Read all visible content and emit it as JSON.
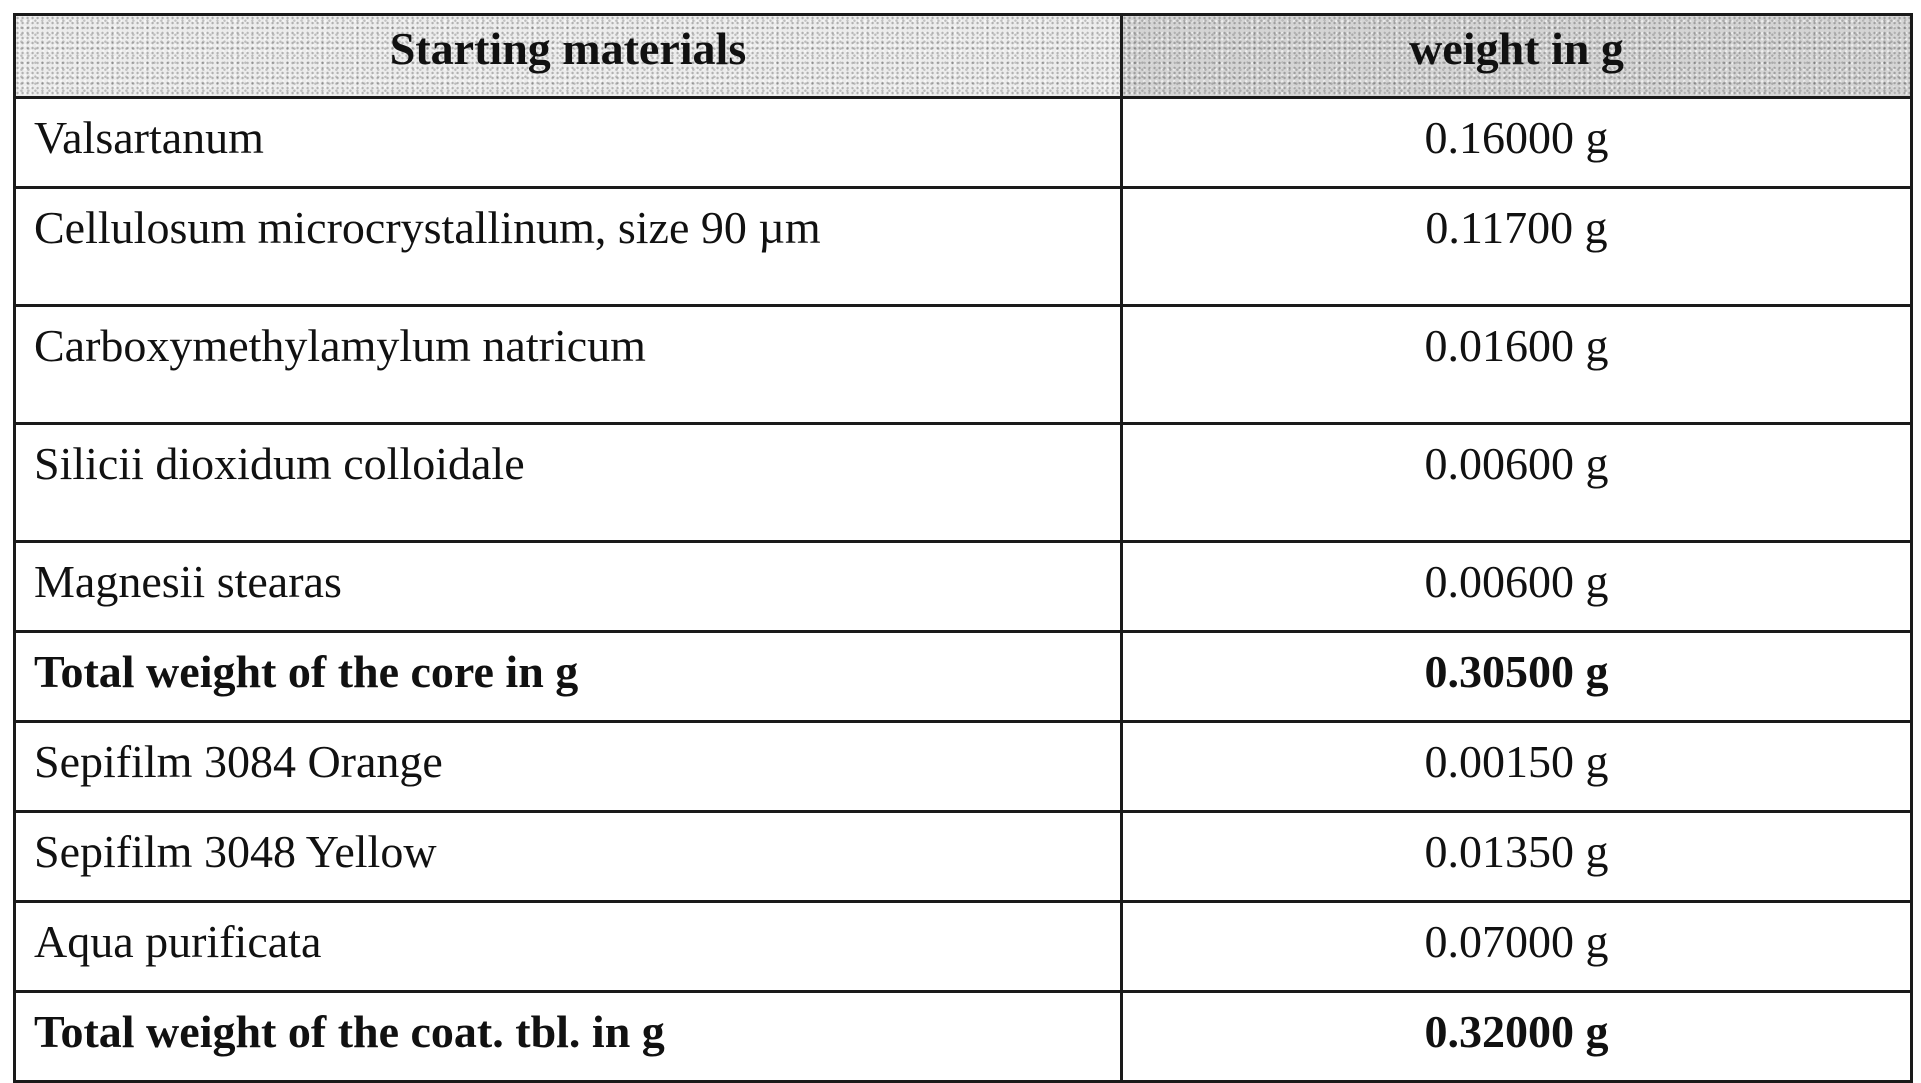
{
  "table": {
    "headers": {
      "material": "Starting materials",
      "weight": "weight in g"
    },
    "rows": [
      {
        "material": "Valsartanum",
        "weight": "0.16000 g",
        "bold": false,
        "tall": false
      },
      {
        "material": "Cellulosum microcrystallinum, size 90 µm",
        "weight": "0.11700 g",
        "bold": false,
        "tall": true
      },
      {
        "material": "Carboxymethylamylum natricum",
        "weight": "0.01600 g",
        "bold": false,
        "tall": true
      },
      {
        "material": "Silicii dioxidum colloidale",
        "weight": "0.00600 g",
        "bold": false,
        "tall": true
      },
      {
        "material": "Magnesii stearas",
        "weight": "0.00600 g",
        "bold": false,
        "tall": false
      },
      {
        "material": "Total weight of the core in g",
        "weight": "0.30500 g",
        "bold": true,
        "tall": false
      },
      {
        "material": "Sepifilm 3084 Orange",
        "weight": "0.00150 g",
        "bold": false,
        "tall": false
      },
      {
        "material": "Sepifilm 3048 Yellow",
        "weight": "0.01350 g",
        "bold": false,
        "tall": false
      },
      {
        "material": "Aqua purificata",
        "weight": "0.07000 g",
        "bold": false,
        "tall": false
      },
      {
        "material": "Total weight of the coat. tbl. in g",
        "weight": "0.32000 g",
        "bold": true,
        "tall": false
      }
    ]
  }
}
